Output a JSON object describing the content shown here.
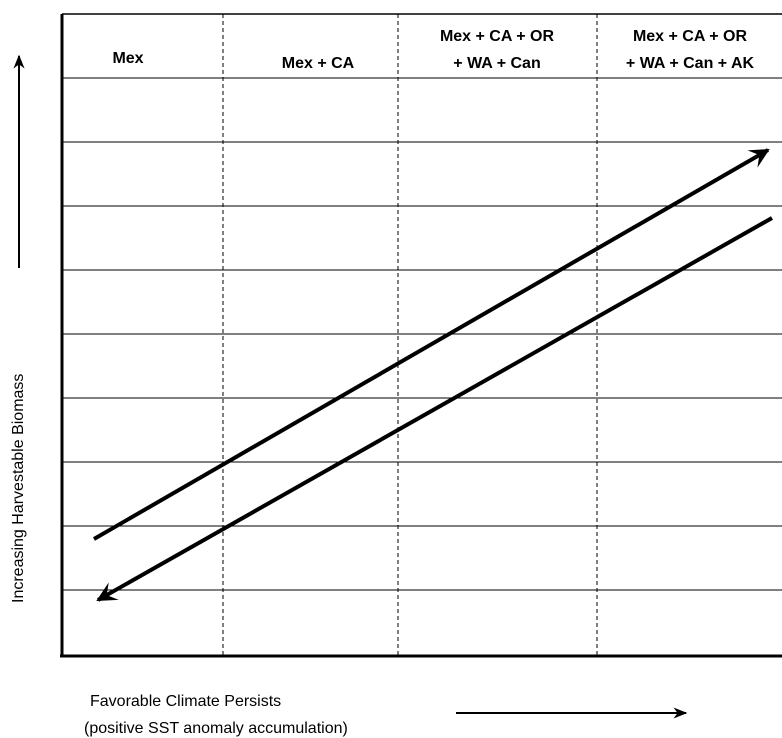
{
  "columns": [
    {
      "lines": [
        "Mex"
      ]
    },
    {
      "lines": [
        "Mex + CA"
      ]
    },
    {
      "lines": [
        "Mex + CA + OR",
        "+ WA + Can"
      ]
    },
    {
      "lines": [
        "Mex + CA + OR",
        "+ WA + Can + AK"
      ]
    }
  ],
  "y_axis_label": "Increasing Harvestable Biomass",
  "x_axis_label": {
    "line1": "Favorable Climate Persists",
    "line2": "(positive SST anomaly accumulation)"
  },
  "arrows": [
    {
      "direction": "up-right",
      "meaning": "increase"
    },
    {
      "direction": "down-left",
      "meaning": "decrease"
    }
  ],
  "colors": {
    "ink": "#000000",
    "background": "#ffffff"
  }
}
